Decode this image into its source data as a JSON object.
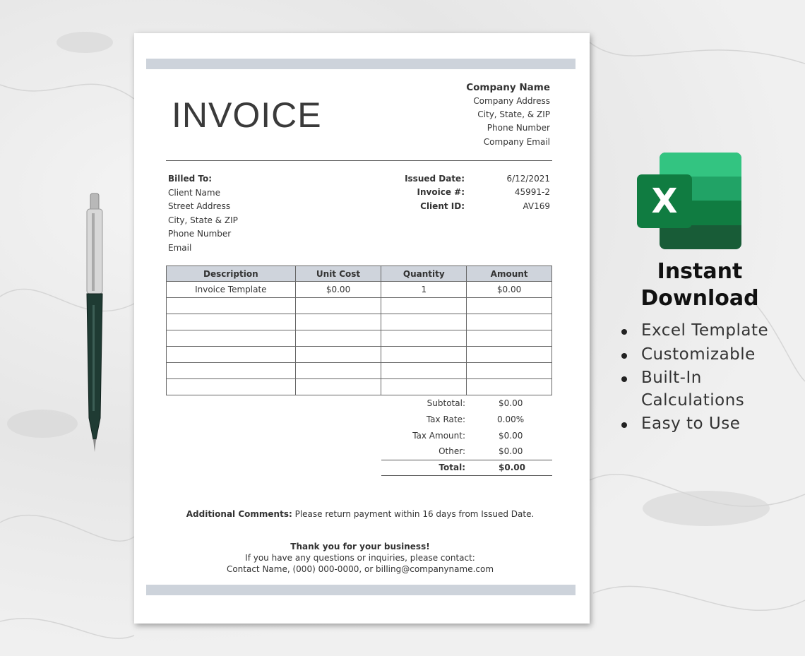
{
  "invoice": {
    "title": "INVOICE",
    "company": [
      "Company Name",
      "Company Address",
      "City, State, & ZIP",
      "Phone Number",
      "Company Email"
    ],
    "billed_to_label": "Billed To:",
    "billed_to": [
      "Client Name",
      "Street Address",
      "City, State & ZIP",
      "Phone Number",
      "Email"
    ],
    "meta": [
      {
        "label": "Issued Date:",
        "value": "6/12/2021"
      },
      {
        "label": "Invoice #:",
        "value": "45991-2"
      },
      {
        "label": "Client ID:",
        "value": "AV169"
      }
    ],
    "table": {
      "headers": [
        "Description",
        "Unit Cost",
        "Quantity",
        "Amount"
      ],
      "rows": [
        [
          "Invoice Template",
          "$0.00",
          "1",
          "$0.00"
        ],
        [
          "",
          "",
          "",
          ""
        ],
        [
          "",
          "",
          "",
          ""
        ],
        [
          "",
          "",
          "",
          ""
        ],
        [
          "",
          "",
          "",
          ""
        ],
        [
          "",
          "",
          "",
          ""
        ],
        [
          "",
          "",
          "",
          ""
        ]
      ]
    },
    "totals": [
      {
        "label": "Subtotal:",
        "value": "$0.00"
      },
      {
        "label": "Tax Rate:",
        "value": "0.00%"
      },
      {
        "label": "Tax Amount:",
        "value": "$0.00"
      },
      {
        "label": "Other:",
        "value": "$0.00"
      },
      {
        "label": "Total:",
        "value": "$0.00"
      }
    ],
    "comments_label": "Additional Comments:",
    "comments": "Please return payment within 16 days from Issued Date.",
    "thanks": "Thank you for your business!",
    "contact_line1": "If you have any questions or inquiries, please contact:",
    "contact_line2": "Contact Name, (000) 000-0000, or billing@companyname.com",
    "accent_color": "#cdd3db"
  },
  "promo": {
    "icon": "excel-icon",
    "icon_letter": "X",
    "headline": [
      "Instant",
      "Download"
    ],
    "bullets": [
      "Excel Template",
      "Customizable",
      "Built-In",
      "Calculations",
      "Easy to Use"
    ]
  }
}
